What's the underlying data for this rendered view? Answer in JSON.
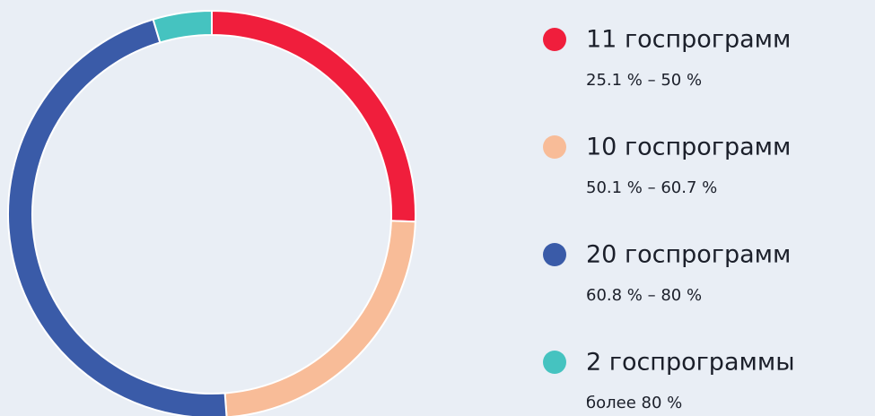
{
  "chart_data": {
    "type": "donut",
    "categories": [
      "11 госпрограмм",
      "10 госпрограмм",
      "20 госпрограмм",
      "2 госпрограммы"
    ],
    "descriptions": [
      "25.1 % – 50 %",
      "50.1 % – 60.7 %",
      "60.8 % – 80 %",
      "более 80 %"
    ],
    "values": [
      11,
      10,
      20,
      2
    ],
    "colors": [
      "#f01e3c",
      "#f8bc98",
      "#3a5ba8",
      "#45c3c0"
    ]
  }
}
